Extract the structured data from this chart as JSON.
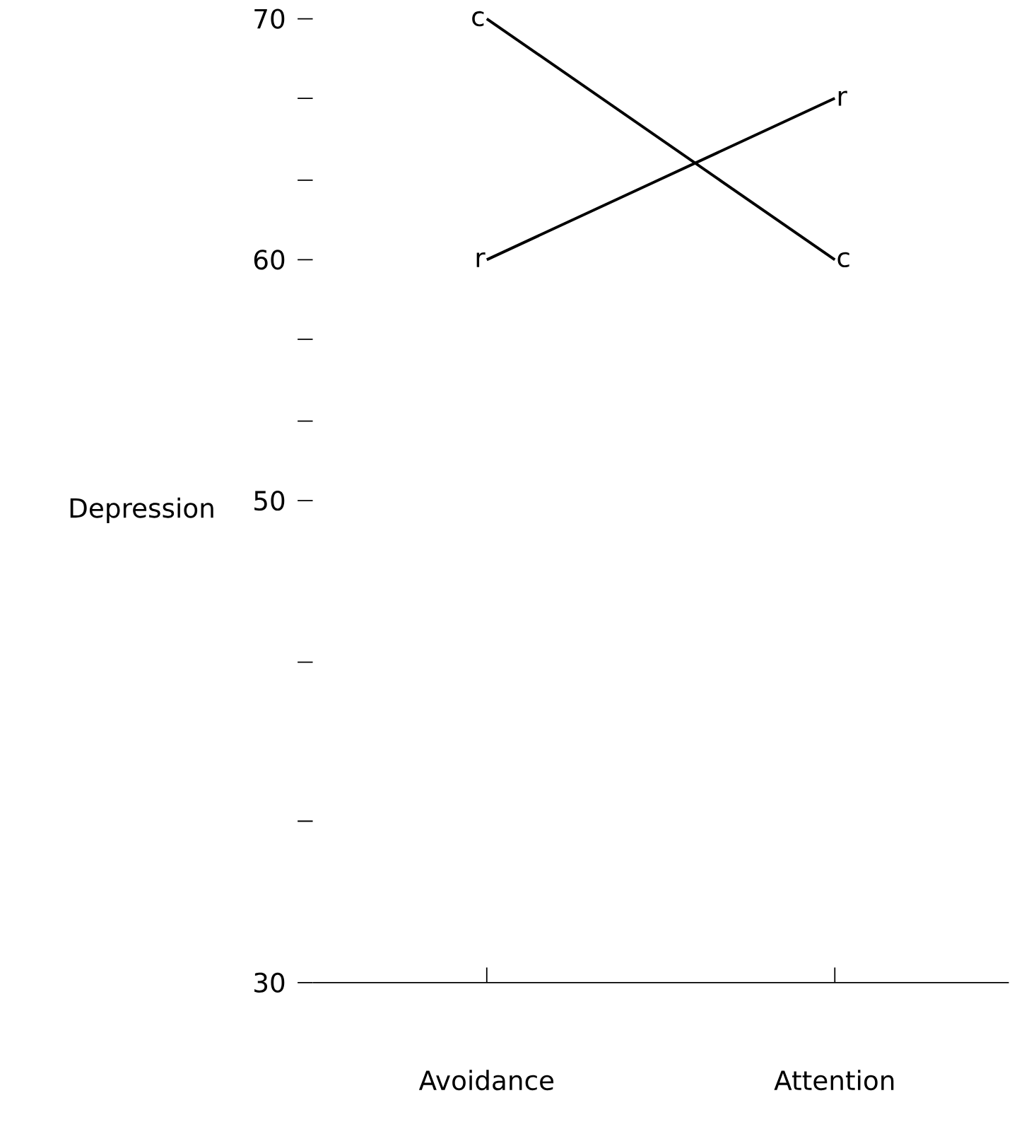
{
  "chart_data": {
    "type": "line",
    "ylabel": "Depression",
    "categories": [
      "Avoidance",
      "Attention"
    ],
    "series": [
      {
        "name": "c",
        "color": "#000000",
        "values": [
          70,
          60
        ]
      },
      {
        "name": "r",
        "color": "#000000",
        "values": [
          60,
          66.7
        ]
      }
    ],
    "ylim": [
      30,
      70
    ],
    "yticks": [
      70,
      60,
      50,
      30,
      {
        "value": 66.7,
        "label": null
      },
      {
        "value": 63.3,
        "label": null
      },
      {
        "value": 56.7,
        "label": null
      },
      {
        "value": 53.3,
        "label": null
      },
      {
        "value": 43.3,
        "label": null
      },
      {
        "value": 36.7,
        "label": null
      }
    ],
    "grid": false
  }
}
